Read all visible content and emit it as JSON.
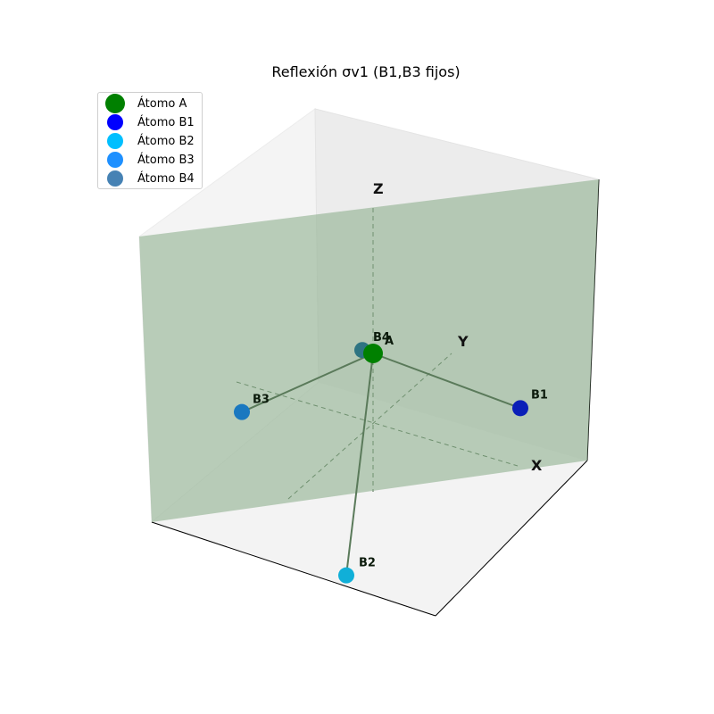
{
  "chart_data": {
    "type": "scatter",
    "projection": "3d",
    "title": "Reflexión σv1 (B1,B3 fijos)",
    "axis_labels": {
      "x": "X",
      "y": "Y",
      "z": "Z"
    },
    "grid": false,
    "legend_position": "top-left",
    "mirror_plane": {
      "name": "σv1",
      "color": "#8fb08f"
    },
    "atoms": [
      {
        "id": "A",
        "label": "A",
        "legend": "Átomo A",
        "color": "#008000",
        "xyz": [
          0,
          0,
          0
        ]
      },
      {
        "id": "B1",
        "label": "B1",
        "legend": "Átomo B1",
        "color": "#0000ff",
        "xyz": [
          1,
          0.5,
          -0.45
        ]
      },
      {
        "id": "B2",
        "label": "B2",
        "legend": "Átomo B2",
        "color": "#00bfff",
        "xyz": [
          0.5,
          -1,
          -1.05
        ]
      },
      {
        "id": "B3",
        "label": "B3",
        "legend": "Átomo B3",
        "color": "#1e90ff",
        "xyz": [
          -1,
          -0.3,
          -0.55
        ]
      },
      {
        "id": "B4",
        "label": "B4",
        "legend": "Átomo B4",
        "color": "#4682b4",
        "xyz": [
          -0.25,
          0.2,
          -0.15
        ]
      }
    ],
    "bonds": [
      [
        "A",
        "B1"
      ],
      [
        "A",
        "B2"
      ],
      [
        "A",
        "B3"
      ],
      [
        "A",
        "B4"
      ]
    ],
    "bond_color": "#5a7a5a"
  }
}
